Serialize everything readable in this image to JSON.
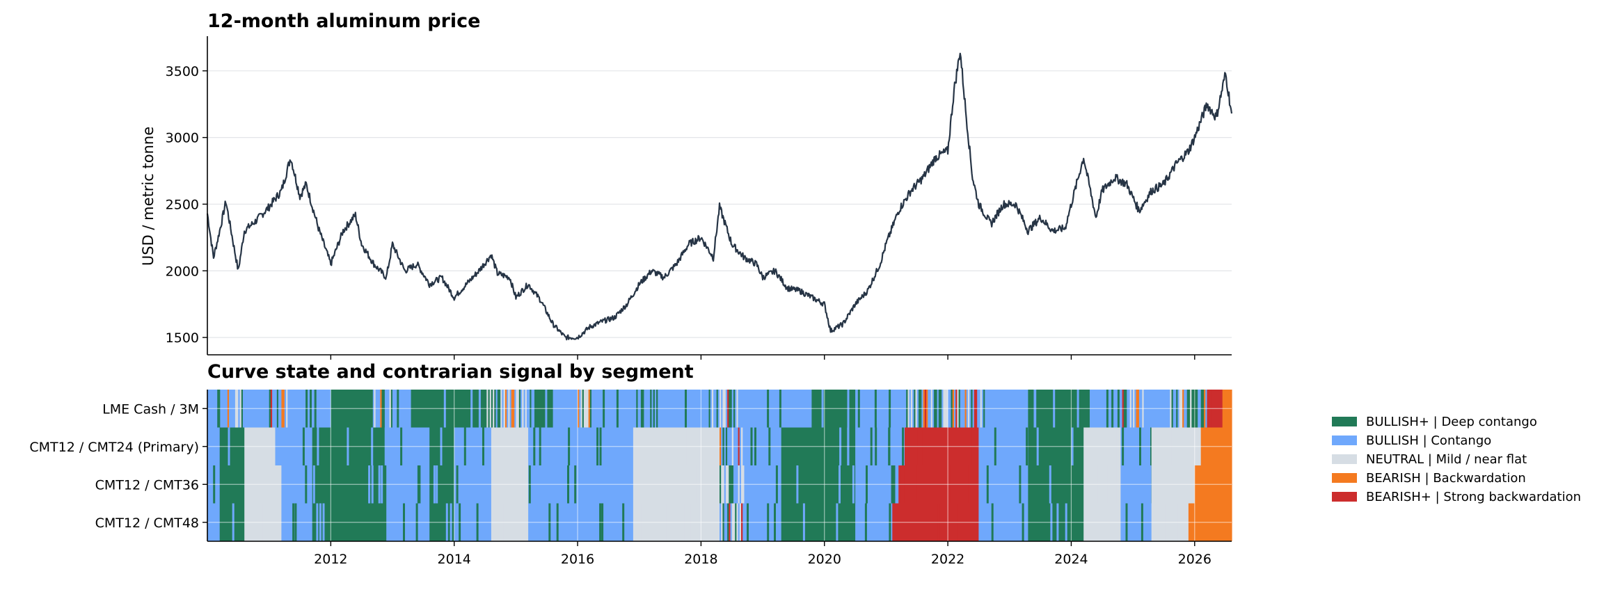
{
  "chart_data": [
    {
      "type": "line",
      "title": "12-month aluminum price",
      "ylabel": "USD / metric tonne",
      "ylim": [
        1370,
        3760
      ],
      "xlim": [
        2010.0,
        2026.6
      ],
      "yticks": [
        "1500",
        "2000",
        "2500",
        "3000",
        "3500"
      ],
      "grid": "horizontal",
      "series": [
        {
          "color": "#263445",
          "x": [
            2010.0,
            2010.1,
            2010.2,
            2010.3,
            2010.5,
            2010.6,
            2010.8,
            2011.0,
            2011.2,
            2011.35,
            2011.5,
            2011.6,
            2011.8,
            2012.0,
            2012.2,
            2012.4,
            2012.5,
            2012.7,
            2012.9,
            2013.0,
            2013.2,
            2013.4,
            2013.6,
            2013.8,
            2014.0,
            2014.2,
            2014.4,
            2014.6,
            2014.7,
            2014.9,
            2015.0,
            2015.2,
            2015.4,
            2015.6,
            2015.8,
            2016.0,
            2016.2,
            2016.4,
            2016.6,
            2016.8,
            2017.0,
            2017.2,
            2017.4,
            2017.6,
            2017.8,
            2018.0,
            2018.2,
            2018.3,
            2018.5,
            2018.7,
            2018.9,
            2019.0,
            2019.2,
            2019.4,
            2019.6,
            2019.8,
            2020.0,
            2020.1,
            2020.3,
            2020.5,
            2020.7,
            2020.9,
            2021.0,
            2021.2,
            2021.4,
            2021.6,
            2021.8,
            2022.0,
            2022.1,
            2022.2,
            2022.3,
            2022.4,
            2022.5,
            2022.7,
            2022.9,
            2023.1,
            2023.3,
            2023.5,
            2023.7,
            2023.9,
            2024.0,
            2024.2,
            2024.4,
            2024.5,
            2024.7,
            2024.9,
            2025.1,
            2025.3,
            2025.5,
            2025.7,
            2025.9,
            2026.0,
            2026.2,
            2026.35,
            2026.5,
            2026.6
          ],
          "values": [
            2430,
            2100,
            2300,
            2520,
            2000,
            2300,
            2380,
            2480,
            2600,
            2850,
            2560,
            2650,
            2320,
            2050,
            2300,
            2420,
            2200,
            2050,
            1950,
            2200,
            2000,
            2050,
            1900,
            1950,
            1800,
            1900,
            2000,
            2120,
            1980,
            1950,
            1800,
            1900,
            1780,
            1600,
            1500,
            1500,
            1580,
            1620,
            1650,
            1750,
            1900,
            2000,
            1950,
            2050,
            2200,
            2250,
            2100,
            2480,
            2200,
            2100,
            2050,
            1950,
            2000,
            1870,
            1850,
            1800,
            1750,
            1550,
            1600,
            1750,
            1850,
            2050,
            2200,
            2450,
            2600,
            2700,
            2850,
            2900,
            3350,
            3650,
            3150,
            2700,
            2500,
            2350,
            2500,
            2500,
            2300,
            2400,
            2300,
            2320,
            2500,
            2850,
            2400,
            2600,
            2700,
            2650,
            2450,
            2600,
            2650,
            2800,
            2900,
            3000,
            3250,
            3150,
            3480,
            3180
          ]
        }
      ]
    },
    {
      "type": "heatmap",
      "title": "Curve state and contrarian signal by segment",
      "xlim": [
        2010.0,
        2026.6
      ],
      "xticks": [
        "2012",
        "2014",
        "2016",
        "2018",
        "2020",
        "2022",
        "2024",
        "2026"
      ],
      "rows": [
        "LME Cash / 3M",
        "CMT12 / CMT24 (Primary)",
        "CMT12 / CMT36",
        "CMT12 / CMT48"
      ],
      "legend_placement": "right",
      "categories": [
        {
          "label": "BULLISH+ | Deep contango",
          "color": "#217a57"
        },
        {
          "label": "BULLISH | Contango",
          "color": "#6fa8fc"
        },
        {
          "label": "NEUTRAL | Mild / near flat",
          "color": "#d6dde4"
        },
        {
          "label": "BEARISH | Backwardation",
          "color": "#f47a20"
        },
        {
          "label": "BEARISH+ | Strong backwardation",
          "color": "#cc2d2d"
        }
      ],
      "segments": [
        [
          [
            2010.0,
            2010.3,
            "BULLISH"
          ],
          [
            2010.3,
            2010.6,
            "MIX"
          ],
          [
            2010.6,
            2011.0,
            "BULLISH"
          ],
          [
            2011.0,
            2011.3,
            "MIX"
          ],
          [
            2011.3,
            2012.0,
            "BULLISH"
          ],
          [
            2012.0,
            2012.7,
            "BULLISH+"
          ],
          [
            2012.7,
            2013.0,
            "MIX"
          ],
          [
            2013.0,
            2013.3,
            "BULLISH"
          ],
          [
            2013.3,
            2014.5,
            "BULLISH+"
          ],
          [
            2014.5,
            2015.3,
            "MIX"
          ],
          [
            2015.3,
            2015.6,
            "BULLISH+"
          ],
          [
            2015.6,
            2016.0,
            "BULLISH"
          ],
          [
            2016.0,
            2016.3,
            "MIX"
          ],
          [
            2016.3,
            2016.9,
            "BULLISH"
          ],
          [
            2016.9,
            2017.3,
            "MIX"
          ],
          [
            2017.3,
            2018.0,
            "BULLISH"
          ],
          [
            2018.0,
            2018.6,
            "MIX"
          ],
          [
            2018.6,
            2019.8,
            "BULLISH"
          ],
          [
            2019.8,
            2020.5,
            "BULLISH+"
          ],
          [
            2020.5,
            2021.3,
            "BULLISH"
          ],
          [
            2021.3,
            2022.6,
            "MIX"
          ],
          [
            2022.6,
            2023.3,
            "BULLISH"
          ],
          [
            2023.3,
            2024.3,
            "BULLISH+"
          ],
          [
            2024.3,
            2024.8,
            "BULLISH"
          ],
          [
            2024.8,
            2025.2,
            "MIX"
          ],
          [
            2025.2,
            2025.6,
            "BULLISH"
          ],
          [
            2025.6,
            2026.2,
            "MIX"
          ],
          [
            2026.2,
            2026.45,
            "BEARISH+"
          ],
          [
            2026.45,
            2026.6,
            "BEARISH"
          ]
        ],
        [
          [
            2010.0,
            2010.2,
            "BULLISH"
          ],
          [
            2010.2,
            2010.6,
            "BULLISH+"
          ],
          [
            2010.6,
            2011.1,
            "NEUTRAL"
          ],
          [
            2011.1,
            2011.7,
            "BULLISH"
          ],
          [
            2011.7,
            2012.9,
            "BULLISH+"
          ],
          [
            2012.9,
            2013.6,
            "BULLISH"
          ],
          [
            2013.6,
            2014.0,
            "BULLISH+"
          ],
          [
            2014.0,
            2014.6,
            "BULLISH"
          ],
          [
            2014.6,
            2015.2,
            "NEUTRAL"
          ],
          [
            2015.2,
            2016.9,
            "BULLISH"
          ],
          [
            2016.9,
            2018.3,
            "NEUTRAL"
          ],
          [
            2018.3,
            2018.7,
            "MIX"
          ],
          [
            2018.7,
            2019.3,
            "BULLISH"
          ],
          [
            2019.3,
            2020.5,
            "BULLISH+"
          ],
          [
            2020.5,
            2021.3,
            "BULLISH"
          ],
          [
            2021.3,
            2022.5,
            "BEARISH+"
          ],
          [
            2022.5,
            2023.3,
            "BULLISH"
          ],
          [
            2023.3,
            2024.2,
            "BULLISH+"
          ],
          [
            2024.2,
            2024.8,
            "NEUTRAL"
          ],
          [
            2024.8,
            2025.3,
            "BULLISH"
          ],
          [
            2025.3,
            2026.1,
            "NEUTRAL"
          ],
          [
            2026.1,
            2026.6,
            "BEARISH"
          ]
        ],
        [
          [
            2010.0,
            2010.2,
            "BULLISH"
          ],
          [
            2010.2,
            2010.6,
            "BULLISH+"
          ],
          [
            2010.6,
            2011.2,
            "NEUTRAL"
          ],
          [
            2011.2,
            2011.7,
            "BULLISH"
          ],
          [
            2011.7,
            2012.9,
            "BULLISH+"
          ],
          [
            2012.9,
            2013.6,
            "BULLISH"
          ],
          [
            2013.6,
            2014.0,
            "BULLISH+"
          ],
          [
            2014.0,
            2014.6,
            "BULLISH"
          ],
          [
            2014.6,
            2015.2,
            "NEUTRAL"
          ],
          [
            2015.2,
            2016.9,
            "BULLISH"
          ],
          [
            2016.9,
            2018.3,
            "NEUTRAL"
          ],
          [
            2018.3,
            2018.7,
            "MIX"
          ],
          [
            2018.7,
            2019.3,
            "BULLISH"
          ],
          [
            2019.3,
            2020.5,
            "BULLISH+"
          ],
          [
            2020.5,
            2021.2,
            "BULLISH"
          ],
          [
            2021.2,
            2022.5,
            "BEARISH+"
          ],
          [
            2022.5,
            2023.3,
            "BULLISH"
          ],
          [
            2023.3,
            2024.2,
            "BULLISH+"
          ],
          [
            2024.2,
            2024.8,
            "NEUTRAL"
          ],
          [
            2024.8,
            2025.3,
            "BULLISH"
          ],
          [
            2025.3,
            2026.0,
            "NEUTRAL"
          ],
          [
            2026.0,
            2026.6,
            "BEARISH"
          ]
        ],
        [
          [
            2010.0,
            2010.2,
            "BULLISH"
          ],
          [
            2010.2,
            2010.6,
            "BULLISH+"
          ],
          [
            2010.6,
            2011.2,
            "NEUTRAL"
          ],
          [
            2011.2,
            2011.7,
            "BULLISH"
          ],
          [
            2011.7,
            2012.9,
            "BULLISH+"
          ],
          [
            2012.9,
            2013.6,
            "BULLISH"
          ],
          [
            2013.6,
            2014.0,
            "BULLISH+"
          ],
          [
            2014.0,
            2014.6,
            "BULLISH"
          ],
          [
            2014.6,
            2015.2,
            "NEUTRAL"
          ],
          [
            2015.2,
            2016.9,
            "BULLISH"
          ],
          [
            2016.9,
            2018.3,
            "NEUTRAL"
          ],
          [
            2018.3,
            2018.7,
            "MIX"
          ],
          [
            2018.7,
            2019.3,
            "BULLISH"
          ],
          [
            2019.3,
            2020.5,
            "BULLISH+"
          ],
          [
            2020.5,
            2021.1,
            "BULLISH"
          ],
          [
            2021.1,
            2022.5,
            "BEARISH+"
          ],
          [
            2022.5,
            2023.3,
            "BULLISH"
          ],
          [
            2023.3,
            2024.2,
            "BULLISH+"
          ],
          [
            2024.2,
            2024.8,
            "NEUTRAL"
          ],
          [
            2024.8,
            2025.3,
            "BULLISH"
          ],
          [
            2025.3,
            2025.9,
            "NEUTRAL"
          ],
          [
            2025.9,
            2026.6,
            "BEARISH"
          ]
        ]
      ]
    }
  ]
}
